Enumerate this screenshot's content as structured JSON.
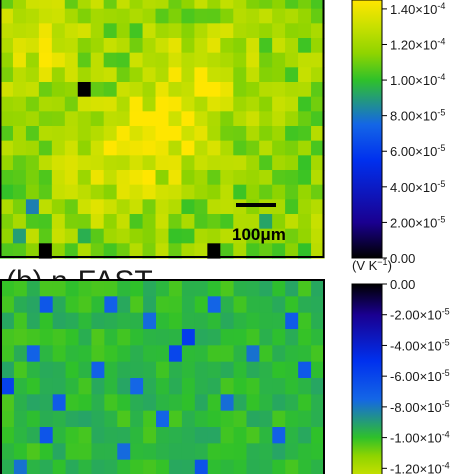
{
  "chart_data": [
    {
      "type": "heatmap",
      "panel_label": "",
      "scale_bar": "100μm",
      "colorbar": {
        "unit": "",
        "colors": [
          "#ffe600",
          "#c8e000",
          "#8fd400",
          "#2fc12a",
          "#1466e6",
          "#0030ee",
          "#1a0090",
          "#000000"
        ],
        "stops": [
          0.000145,
          0.00013,
          0.000115,
          0.0001,
          7.5e-05,
          5.5e-05,
          2e-05,
          0
        ],
        "ticks": [
          {
            "value": 0.00014,
            "label": "1.40×10",
            "exp": "-4"
          },
          {
            "value": 0.00012,
            "label": "1.20×10",
            "exp": "-4"
          },
          {
            "value": 0.0001,
            "label": "1.00×10",
            "exp": "-4"
          },
          {
            "value": 8e-05,
            "label": "8.00×10",
            "exp": "-5"
          },
          {
            "value": 6e-05,
            "label": "6.00×10",
            "exp": "-5"
          },
          {
            "value": 4e-05,
            "label": "4.00×10",
            "exp": "-5"
          },
          {
            "value": 2e-05,
            "label": "2.00×10",
            "exp": "-5"
          },
          {
            "value": 0,
            "label": "0.00",
            "exp": ""
          }
        ],
        "range": [
          0,
          0.000145
        ]
      },
      "grid": {
        "rows": 18,
        "cols": 25,
        "baseline": 0.000115,
        "amplitude": 1.5e-05,
        "hotspots": [
          {
            "row": 5,
            "col": 15,
            "value": 0.000138
          },
          {
            "row": 9,
            "col": 12,
            "value": 0.00014
          },
          {
            "row": 3,
            "col": 3,
            "value": 0.000132
          },
          {
            "row": 11,
            "col": 8,
            "value": 0.000134
          }
        ],
        "special_cells": [
          {
            "row": 6,
            "col": 6,
            "value": 0
          },
          {
            "row": 17,
            "col": 3,
            "value": 0
          },
          {
            "row": 17,
            "col": 16,
            "value": 0
          },
          {
            "row": 14,
            "col": 2,
            "value": 8.2e-05
          },
          {
            "row": 16,
            "col": 1,
            "value": 9e-05
          },
          {
            "row": 16,
            "col": 6,
            "value": 9.5e-05
          },
          {
            "row": 15,
            "col": 20,
            "value": 9.2e-05
          }
        ]
      }
    },
    {
      "type": "heatmap",
      "panel_label": "(b) n-FAST",
      "scale_bar": "",
      "colorbar": {
        "unit": "(V K",
        "unit_exp": "−1",
        "unit_close": ")",
        "colors": [
          "#000000",
          "#1a0090",
          "#0030ee",
          "#1466e6",
          "#2fc12a",
          "#8fd400",
          "#c8e000"
        ],
        "stops": [
          0,
          -2e-05,
          -5e-05,
          -7.5e-05,
          -0.0001,
          -0.000112,
          -0.000125
        ],
        "ticks": [
          {
            "value": 0,
            "label": "0.00",
            "exp": ""
          },
          {
            "value": -2e-05,
            "label": "-2.00×10",
            "exp": "-5"
          },
          {
            "value": -4e-05,
            "label": "-4.00×10",
            "exp": "-5"
          },
          {
            "value": -6e-05,
            "label": "-6.00×10",
            "exp": "-5"
          },
          {
            "value": -8e-05,
            "label": "-8.00×10",
            "exp": "-5"
          },
          {
            "value": -0.0001,
            "label": "-1.00×10",
            "exp": "-4"
          },
          {
            "value": -0.00012,
            "label": "-1.20×10",
            "exp": "-4"
          }
        ],
        "range": [
          -0.000125,
          0
        ]
      },
      "grid": {
        "rows": 12,
        "cols": 25,
        "baseline": -9.8e-05,
        "amplitude": 6e-06,
        "hotspots": [],
        "special_cells": [
          {
            "row": 1,
            "col": 3,
            "value": -6.8e-05
          },
          {
            "row": 1,
            "col": 8,
            "value": -7.2e-05
          },
          {
            "row": 1,
            "col": 16,
            "value": -7.4e-05
          },
          {
            "row": 2,
            "col": 11,
            "value": -7.6e-05
          },
          {
            "row": 2,
            "col": 22,
            "value": -7e-05
          },
          {
            "row": 3,
            "col": 14,
            "value": -5.5e-05
          },
          {
            "row": 4,
            "col": 13,
            "value": -6e-05
          },
          {
            "row": 4,
            "col": 2,
            "value": -7.3e-05
          },
          {
            "row": 4,
            "col": 19,
            "value": -7.8e-05
          },
          {
            "row": 5,
            "col": 7,
            "value": -7.2e-05
          },
          {
            "row": 5,
            "col": 23,
            "value": -6.9e-05
          },
          {
            "row": 6,
            "col": 0,
            "value": -5.8e-05
          },
          {
            "row": 6,
            "col": 10,
            "value": -7.5e-05
          },
          {
            "row": 7,
            "col": 4,
            "value": -7e-05
          },
          {
            "row": 7,
            "col": 17,
            "value": -7.7e-05
          },
          {
            "row": 8,
            "col": 12,
            "value": -7.4e-05
          },
          {
            "row": 9,
            "col": 3,
            "value": -6.7e-05
          },
          {
            "row": 9,
            "col": 21,
            "value": -7.2e-05
          },
          {
            "row": 10,
            "col": 9,
            "value": -7.6e-05
          },
          {
            "row": 11,
            "col": 15,
            "value": -6.6e-05
          },
          {
            "row": 11,
            "col": 1,
            "value": -7.8e-05
          }
        ]
      }
    }
  ]
}
